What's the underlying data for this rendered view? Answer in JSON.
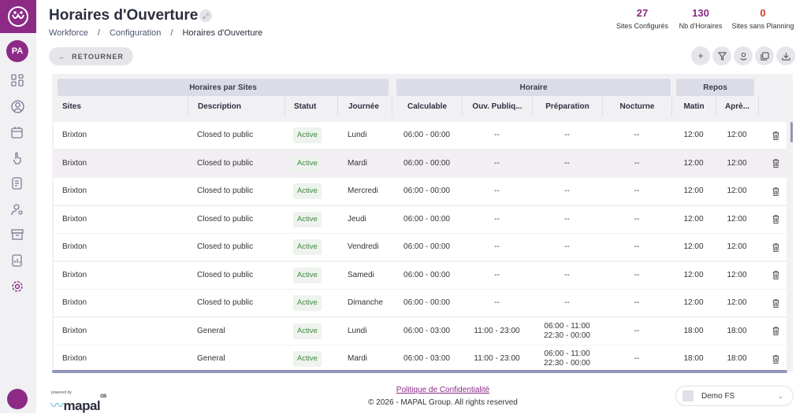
{
  "sidebar": {
    "avatar": "PA"
  },
  "header": {
    "title": "Horaires d'Ouverture",
    "breadcrumb": [
      "Workforce",
      "/",
      "Configuration",
      "/",
      "Horaires d'Ouverture"
    ],
    "back_label": "RETOURNER"
  },
  "stats": [
    {
      "value": "27",
      "label": "Sites Configurés",
      "color": "#8c2a86"
    },
    {
      "value": "130",
      "label": "Nb d'Horaires",
      "color": "#8c2a86"
    },
    {
      "value": "0",
      "label": "Sites sans Planning",
      "color": "#d23b2f"
    }
  ],
  "table": {
    "groups": [
      "Horaires par Sites",
      "Horaire",
      "Repos"
    ],
    "columns": [
      "Sites",
      "Description",
      "Statut",
      "Journée",
      "Calculable",
      "Ouv. Publiq...",
      "Préparation",
      "Nocturne",
      "Matin",
      "Aprè..."
    ],
    "rows": [
      [
        "Brixton",
        "Closed to public",
        "Active",
        "Lundi",
        "06:00 - 00:00",
        "--",
        "--",
        "--",
        "12:00",
        "12:00"
      ],
      [
        "Brixton",
        "Closed to public",
        "Active",
        "Mardi",
        "06:00 - 00:00",
        "--",
        "--",
        "--",
        "12:00",
        "12:00"
      ],
      [
        "Brixton",
        "Closed to public",
        "Active",
        "Mercredi",
        "06:00 - 00:00",
        "--",
        "--",
        "--",
        "12:00",
        "12:00"
      ],
      [
        "Brixton",
        "Closed to public",
        "Active",
        "Jeudi",
        "06:00 - 00:00",
        "--",
        "--",
        "--",
        "12:00",
        "12:00"
      ],
      [
        "Brixton",
        "Closed to public",
        "Active",
        "Vendredi",
        "06:00 - 00:00",
        "--",
        "--",
        "--",
        "12:00",
        "12:00"
      ],
      [
        "Brixton",
        "Closed to public",
        "Active",
        "Samedi",
        "06:00 - 00:00",
        "--",
        "--",
        "--",
        "12:00",
        "12:00"
      ],
      [
        "Brixton",
        "Closed to public",
        "Active",
        "Dimanche",
        "06:00 - 00:00",
        "--",
        "--",
        "--",
        "12:00",
        "12:00"
      ],
      [
        "Brixton",
        "General",
        "Active",
        "Lundi",
        "06:00 - 03:00",
        "11:00 - 23:00",
        "06:00 - 11:00\n22:30 - 00:00",
        "--",
        "18:00",
        "18:00"
      ],
      [
        "Brixton",
        "General",
        "Active",
        "Mardi",
        "06:00 - 03:00",
        "11:00 - 23:00",
        "06:00 - 11:00\n22:30 - 00:00",
        "--",
        "18:00",
        "18:00"
      ]
    ]
  },
  "footer": {
    "privacy": "Politique de Confidentialité",
    "copyright": "© 2026 - MAPAL Group. All rights reserved",
    "powered": "powered by",
    "brand": "mapal",
    "brand_suffix": "OS",
    "site": "Demo FS"
  }
}
